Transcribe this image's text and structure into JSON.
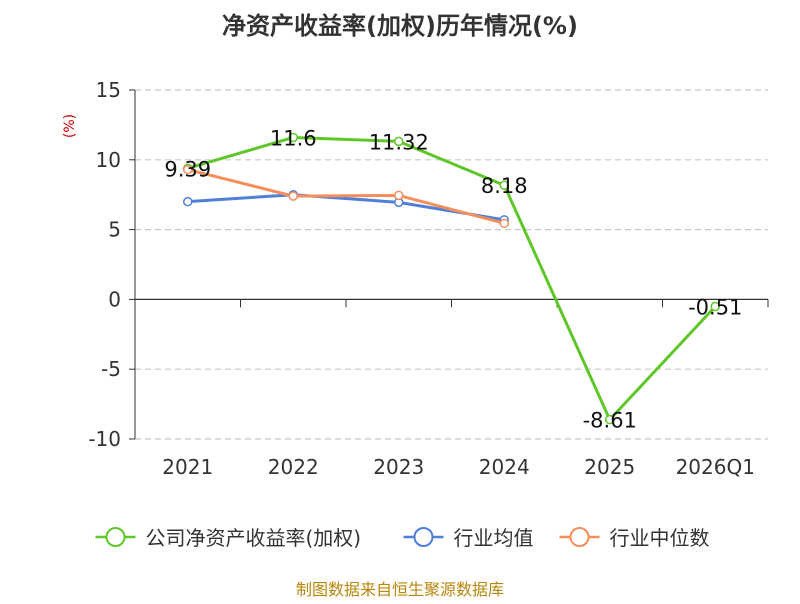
{
  "chart_data": {
    "type": "line",
    "title": "净资产收益率(加权)历年情况(%)",
    "ylabel": "(%)",
    "xlabel": "",
    "categories": [
      "2021",
      "2022",
      "2023",
      "2024",
      "2025",
      "2026Q1"
    ],
    "ylim": [
      -10,
      15
    ],
    "yticks": [
      15,
      10,
      5,
      0,
      -5,
      -10
    ],
    "grid": true,
    "legend_position": "bottom",
    "series": [
      {
        "name": "公司净资产收益率(加权)",
        "color": "#5fc62a",
        "values": [
          9.39,
          11.6,
          11.32,
          8.18,
          -8.61,
          -0.51
        ],
        "labels": [
          "9.39",
          "11.6",
          "11.32",
          "8.18",
          "-8.61",
          "-0.51"
        ]
      },
      {
        "name": "行业均值",
        "color": "#4f7fd9",
        "values": [
          7.0,
          7.5,
          6.95,
          5.7,
          null,
          null
        ]
      },
      {
        "name": "行业中位数",
        "color": "#f48f5c",
        "values": [
          9.3,
          7.4,
          7.45,
          5.45,
          null,
          null
        ]
      }
    ]
  },
  "footer": {
    "source": "制图数据来自恒生聚源数据库"
  },
  "colors": {
    "title": "#333333",
    "axis_text": "#333333",
    "unit": "#cc0000",
    "grid": "#c8c8c8",
    "source": "#b8860b"
  }
}
